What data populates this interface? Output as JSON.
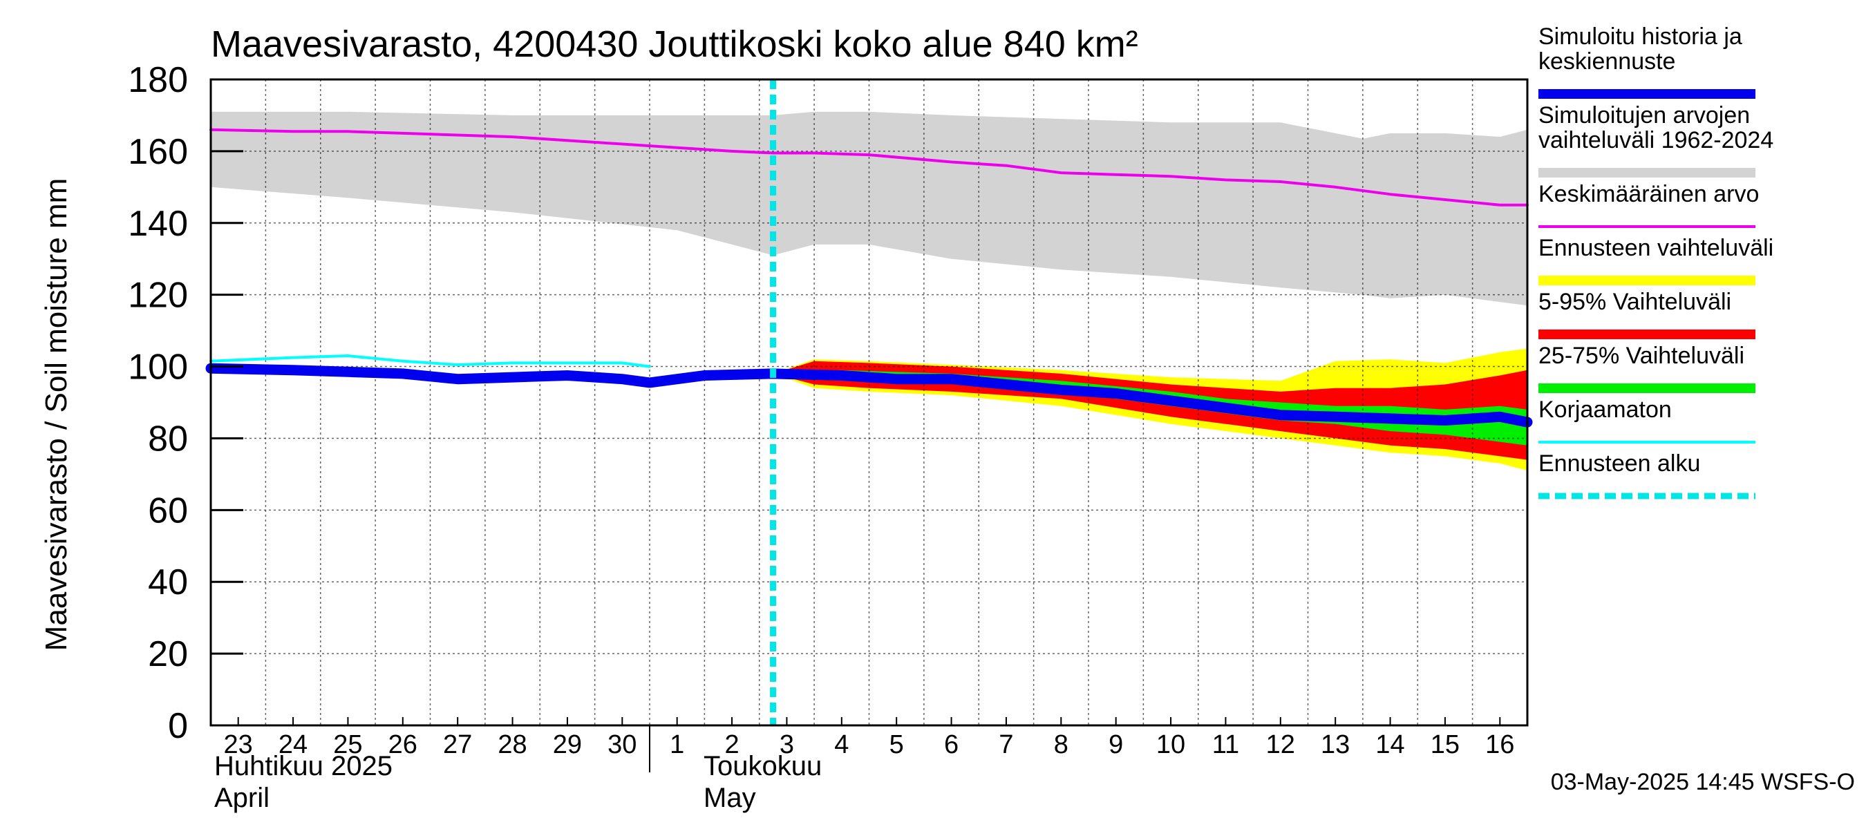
{
  "chart_data": {
    "type": "line",
    "title": "Maavesivarasto, 4200430 Jouttikoski koko alue 840 km²",
    "ylabel": "Maavesivarasto / Soil moisture   mm",
    "ylim": [
      0,
      180
    ],
    "yticks": [
      0,
      20,
      40,
      60,
      80,
      100,
      120,
      140,
      160,
      180
    ],
    "x_day_range": [
      22.5,
      46.5
    ],
    "x_tick_labels": [
      "23",
      "24",
      "25",
      "26",
      "27",
      "28",
      "29",
      "30",
      "1",
      "2",
      "3",
      "4",
      "5",
      "6",
      "7",
      "8",
      "9",
      "10",
      "11",
      "12",
      "13",
      "14",
      "15",
      "16"
    ],
    "x_tick_days": [
      23,
      24,
      25,
      26,
      27,
      28,
      29,
      30,
      31,
      32,
      33,
      34,
      35,
      36,
      37,
      38,
      39,
      40,
      41,
      42,
      43,
      44,
      45,
      46
    ],
    "month_labels": [
      {
        "fi": "Huhtikuu  2025",
        "en": "April"
      },
      {
        "fi": "Toukokuu",
        "en": "May"
      }
    ],
    "month_boundary_day": 30.5,
    "forecast_start_day": 32.75,
    "grid": true,
    "footer": "03-May-2025 14:45 WSFS-O",
    "legend": [
      {
        "label": "Simuloitu historia ja keskiennuste",
        "lines": [
          "Simuloitu historia ja",
          "keskiennuste"
        ],
        "color": "#0000ee",
        "style": "thick"
      },
      {
        "label": "Simuloitujen arvojen vaihteluväli 1962-2024",
        "lines": [
          "Simuloitujen arvojen",
          "vaihteluväli 1962-2024"
        ],
        "color": "#d3d3d3",
        "style": "band"
      },
      {
        "label": "Keskimääräinen arvo",
        "lines": [
          "Keskimääräinen arvo"
        ],
        "color": "#ee00ee",
        "style": "line"
      },
      {
        "label": "Ennusteen vaihteluväli",
        "lines": [
          "Ennusteen vaihteluväli"
        ],
        "color": "#ffff00",
        "style": "band"
      },
      {
        "label": "5-95% Vaihteluväli",
        "lines": [
          "5-95% Vaihteluväli"
        ],
        "color": "#ff0000",
        "style": "band"
      },
      {
        "label": "25-75% Vaihteluväli",
        "lines": [
          "25-75% Vaihteluväli"
        ],
        "color": "#00ee00",
        "style": "band"
      },
      {
        "label": "Korjaamaton",
        "lines": [
          "Korjaamaton"
        ],
        "color": "#00ffff",
        "style": "line"
      },
      {
        "label": "Ennusteen alku",
        "lines": [
          "Ennusteen alku"
        ],
        "color": "#00e5e5",
        "style": "dashed"
      }
    ],
    "series": [
      {
        "name": "Simuloitujen arvojen vaihteluväli 1962-2024",
        "kind": "band",
        "color": "#d3d3d3",
        "x": [
          22.5,
          25,
          28,
          31,
          32.75,
          33.5,
          34.5,
          36,
          38,
          40,
          42,
          43.5,
          44,
          45,
          46,
          46.5
        ],
        "low": [
          150,
          147,
          143,
          138,
          131,
          134,
          134,
          130,
          127,
          125,
          122,
          120,
          119,
          120,
          118,
          117
        ],
        "high": [
          171,
          171,
          170,
          170,
          170,
          171,
          171,
          170,
          169,
          168,
          168,
          163.5,
          165,
          165,
          164,
          166
        ]
      },
      {
        "name": "Ennusteen vaihteluväli",
        "kind": "band",
        "color": "#ffff00",
        "x": [
          32.75,
          33.5,
          34.5,
          36,
          38,
          40,
          42,
          43,
          44,
          45,
          46,
          46.5
        ],
        "low": [
          98,
          94,
          93,
          92,
          89,
          84,
          80,
          78,
          76,
          75,
          73,
          71
        ],
        "high": [
          98,
          102,
          101.5,
          100.5,
          99,
          97,
          96,
          101.5,
          102,
          101,
          104,
          105
        ]
      },
      {
        "name": "5-95% Vaihteluväli",
        "kind": "band",
        "color": "#ff0000",
        "x": [
          32.75,
          33.5,
          34.5,
          36,
          38,
          40,
          41,
          42,
          43,
          44,
          45,
          46,
          46.5
        ],
        "low": [
          98,
          95,
          94,
          93,
          91,
          86,
          84,
          82,
          80,
          78,
          77,
          75,
          74
        ],
        "high": [
          98,
          101.5,
          101,
          100,
          98,
          95,
          94,
          93,
          94,
          94,
          95,
          97.5,
          99
        ]
      },
      {
        "name": "25-75% Vaihteluväli",
        "kind": "band",
        "color": "#00ee00",
        "x": [
          32.75,
          34,
          36,
          38,
          40,
          41,
          42,
          43,
          44,
          45,
          46,
          46.5
        ],
        "low": [
          98,
          97,
          95.5,
          93,
          89,
          87,
          85,
          84,
          82,
          81,
          79,
          78
        ],
        "high": [
          98,
          99,
          98,
          96,
          93,
          91,
          90,
          89,
          89,
          88,
          89,
          88
        ]
      },
      {
        "name": "Keskimääräinen arvo",
        "kind": "line",
        "color": "#ee00ee",
        "x": [
          22.5,
          24,
          25,
          26,
          28,
          30,
          31,
          32,
          32.75,
          33.5,
          34.5,
          36,
          37,
          38,
          39,
          40,
          41,
          42,
          43,
          44,
          45,
          46,
          46.5
        ],
        "y": [
          166,
          165.5,
          165.5,
          165,
          164,
          162,
          161,
          160,
          159.5,
          159.5,
          159,
          157,
          156,
          154,
          153.5,
          153,
          152,
          151.5,
          150,
          148,
          146.5,
          145,
          145
        ]
      },
      {
        "name": "Korjaamaton",
        "kind": "line",
        "color": "#00ffff",
        "x": [
          22.5,
          24,
          25,
          26,
          27,
          28,
          29,
          30,
          30.5
        ],
        "y": [
          101.5,
          102.5,
          103,
          101.5,
          100.5,
          101,
          101,
          101,
          100
        ]
      },
      {
        "name": "Simuloitu historia ja keskiennuste",
        "kind": "thick",
        "color": "#0000ee",
        "x": [
          22.5,
          24,
          25,
          26,
          27,
          28,
          29,
          30,
          30.5,
          31.5,
          32.75,
          34,
          35,
          36,
          37,
          38,
          39,
          40,
          41,
          42,
          43,
          44,
          45,
          46,
          46.5
        ],
        "y": [
          99.5,
          99,
          98.5,
          98,
          96.5,
          97,
          97.5,
          96.5,
          95.5,
          97.5,
          98,
          97.5,
          96.5,
          96.5,
          95,
          93.5,
          92.5,
          90.5,
          88.5,
          86.5,
          86,
          85.5,
          85,
          86,
          84.5
        ]
      }
    ]
  }
}
